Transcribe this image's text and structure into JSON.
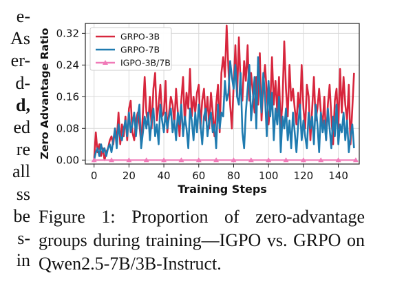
{
  "left_text": [
    {
      "text": "e-",
      "bold": false
    },
    {
      "text": "As",
      "bold": false
    },
    {
      "text": "er-",
      "bold": false
    },
    {
      "text": "d-",
      "bold": false
    },
    {
      "text": "d,",
      "bold": true
    },
    {
      "text": "ed",
      "bold": false
    },
    {
      "text": "re",
      "bold": false
    },
    {
      "text": "all",
      "bold": false
    },
    {
      "text": "ss",
      "bold": false
    },
    {
      "text": "be",
      "bold": false
    },
    {
      "text": "s-",
      "bold": false
    },
    {
      "text": "in",
      "bold": false
    }
  ],
  "caption": "Figure 1: Proportion of zero-advantage groups during training—IGPO vs. GRPO on Qwen2.5-7B/3B-Instruct.",
  "chart_data": {
    "type": "line",
    "title": "",
    "xlabel": "Training Steps",
    "ylabel": "Zero Advantage Ratio",
    "xlim": [
      -5,
      152
    ],
    "ylim": [
      -0.01,
      0.345
    ],
    "xticks": [
      0,
      20,
      40,
      60,
      80,
      100,
      120,
      140
    ],
    "yticks": [
      0.0,
      0.08,
      0.16,
      0.24,
      0.32
    ],
    "ytick_labels": [
      "0.00",
      "0.08",
      "0.16",
      "0.24",
      "0.32"
    ],
    "grid": true,
    "legend_position": "top-left",
    "series": [
      {
        "name": "GRPO-3B",
        "color": "#d7263d",
        "marker": "none",
        "x": [
          0,
          1,
          2,
          3,
          4,
          5,
          6,
          7,
          8,
          9,
          10,
          11,
          12,
          13,
          14,
          15,
          16,
          17,
          18,
          19,
          20,
          21,
          22,
          23,
          24,
          25,
          26,
          27,
          28,
          29,
          30,
          31,
          32,
          33,
          34,
          35,
          36,
          37,
          38,
          39,
          40,
          41,
          42,
          43,
          44,
          45,
          46,
          47,
          48,
          49,
          50,
          51,
          52,
          53,
          54,
          55,
          56,
          57,
          58,
          59,
          60,
          61,
          62,
          63,
          64,
          65,
          66,
          67,
          68,
          69,
          70,
          71,
          72,
          73,
          74,
          75,
          76,
          77,
          78,
          79,
          80,
          81,
          82,
          83,
          84,
          85,
          86,
          87,
          88,
          89,
          90,
          91,
          92,
          93,
          94,
          95,
          96,
          97,
          98,
          99,
          100,
          101,
          102,
          103,
          104,
          105,
          106,
          107,
          108,
          109,
          110,
          111,
          112,
          113,
          114,
          115,
          116,
          117,
          118,
          119,
          120,
          121,
          122,
          123,
          124,
          125,
          126,
          127,
          128,
          129,
          130,
          131,
          132,
          133,
          134,
          135,
          136,
          137,
          138,
          139,
          140,
          141,
          142,
          143,
          144,
          145,
          146,
          147,
          148,
          149
        ],
        "values": [
          0.0,
          0.07,
          0.02,
          0.04,
          0.01,
          0.03,
          0.0,
          0.02,
          0.03,
          0.05,
          0.06,
          0.04,
          0.08,
          0.05,
          0.12,
          0.04,
          0.09,
          0.06,
          0.11,
          0.05,
          0.13,
          0.15,
          0.07,
          0.05,
          0.1,
          0.12,
          0.09,
          0.04,
          0.12,
          0.21,
          0.12,
          0.09,
          0.16,
          0.08,
          0.18,
          0.22,
          0.1,
          0.14,
          0.19,
          0.11,
          0.12,
          0.2,
          0.07,
          0.12,
          0.16,
          0.14,
          0.09,
          0.18,
          0.12,
          0.06,
          0.15,
          0.21,
          0.09,
          0.17,
          0.13,
          0.23,
          0.11,
          0.16,
          0.12,
          0.17,
          0.19,
          0.08,
          0.15,
          0.18,
          0.1,
          0.16,
          0.08,
          0.17,
          0.12,
          0.06,
          0.14,
          0.19,
          0.07,
          0.22,
          0.26,
          0.21,
          0.34,
          0.23,
          0.14,
          0.08,
          0.19,
          0.29,
          0.16,
          0.31,
          0.19,
          0.15,
          0.25,
          0.2,
          0.29,
          0.15,
          0.22,
          0.17,
          0.12,
          0.21,
          0.14,
          0.27,
          0.1,
          0.19,
          0.24,
          0.17,
          0.09,
          0.14,
          0.26,
          0.14,
          0.2,
          0.12,
          0.21,
          0.08,
          0.15,
          0.3,
          0.18,
          0.11,
          0.24,
          0.15,
          0.18,
          0.13,
          0.09,
          0.17,
          0.11,
          0.24,
          0.13,
          0.08,
          0.19,
          0.16,
          0.05,
          0.13,
          0.21,
          0.1,
          0.13,
          0.18,
          0.12,
          0.09,
          0.16,
          0.05,
          0.14,
          0.19,
          0.11,
          0.04,
          0.15,
          0.18,
          0.08,
          0.23,
          0.12,
          0.21,
          0.14,
          0.1,
          0.19,
          0.04,
          0.13,
          0.22
        ]
      },
      {
        "name": "GRPO-7B",
        "color": "#1f7bb0",
        "marker": "none",
        "x": [
          0,
          1,
          2,
          3,
          4,
          5,
          6,
          7,
          8,
          9,
          10,
          11,
          12,
          13,
          14,
          15,
          16,
          17,
          18,
          19,
          20,
          21,
          22,
          23,
          24,
          25,
          26,
          27,
          28,
          29,
          30,
          31,
          32,
          33,
          34,
          35,
          36,
          37,
          38,
          39,
          40,
          41,
          42,
          43,
          44,
          45,
          46,
          47,
          48,
          49,
          50,
          51,
          52,
          53,
          54,
          55,
          56,
          57,
          58,
          59,
          60,
          61,
          62,
          63,
          64,
          65,
          66,
          67,
          68,
          69,
          70,
          71,
          72,
          73,
          74,
          75,
          76,
          77,
          78,
          79,
          80,
          81,
          82,
          83,
          84,
          85,
          86,
          87,
          88,
          89,
          90,
          91,
          92,
          93,
          94,
          95,
          96,
          97,
          98,
          99,
          100,
          101,
          102,
          103,
          104,
          105,
          106,
          107,
          108,
          109,
          110,
          111,
          112,
          113,
          114,
          115,
          116,
          117,
          118,
          119,
          120,
          121,
          122,
          123,
          124,
          125,
          126,
          127,
          128,
          129,
          130,
          131,
          132,
          133,
          134,
          135,
          136,
          137,
          138,
          139,
          140,
          141,
          142,
          143,
          144,
          145,
          146,
          147,
          148,
          149
        ],
        "values": [
          0.0,
          0.02,
          0.03,
          0.01,
          0.04,
          0.02,
          0.03,
          0.01,
          0.03,
          0.04,
          0.02,
          0.05,
          0.08,
          0.03,
          0.09,
          0.06,
          0.05,
          0.08,
          0.1,
          0.06,
          0.12,
          0.07,
          0.09,
          0.12,
          0.06,
          0.11,
          0.14,
          0.03,
          0.07,
          0.11,
          0.08,
          0.12,
          0.05,
          0.1,
          0.13,
          0.06,
          0.09,
          0.04,
          0.14,
          0.1,
          0.07,
          0.12,
          0.08,
          0.11,
          0.13,
          0.07,
          0.1,
          0.05,
          0.12,
          0.09,
          0.14,
          0.06,
          0.11,
          0.08,
          0.03,
          0.13,
          0.1,
          0.05,
          0.12,
          0.07,
          0.14,
          0.09,
          0.04,
          0.11,
          0.13,
          0.06,
          0.1,
          0.12,
          0.07,
          0.09,
          0.03,
          0.14,
          0.08,
          0.12,
          0.11,
          0.2,
          0.15,
          0.17,
          0.25,
          0.21,
          0.18,
          0.24,
          0.16,
          0.14,
          0.22,
          0.07,
          0.03,
          0.12,
          0.18,
          0.24,
          0.1,
          0.15,
          0.21,
          0.08,
          0.26,
          0.18,
          0.12,
          0.22,
          0.16,
          0.06,
          0.2,
          0.11,
          0.17,
          0.05,
          0.13,
          0.09,
          0.16,
          0.02,
          0.11,
          0.08,
          0.13,
          0.05,
          0.1,
          0.03,
          0.12,
          0.07,
          0.02,
          0.09,
          0.14,
          0.05,
          0.1,
          0.06,
          0.03,
          0.12,
          0.08,
          0.11,
          0.04,
          0.14,
          0.09,
          0.02,
          0.12,
          0.07,
          0.1,
          0.05,
          0.13,
          0.08,
          0.03,
          0.11,
          0.06,
          0.14,
          0.04,
          0.09,
          0.07,
          0.12,
          0.05,
          0.1,
          0.02,
          0.06,
          0.09,
          0.03
        ]
      },
      {
        "name": "IGPO-3B/7B",
        "color": "#f07ab8",
        "marker": "triangle",
        "marker_every_x": [
          0,
          10,
          20,
          30,
          40,
          50,
          60,
          70,
          80,
          90,
          100,
          110,
          120,
          130,
          140,
          150
        ],
        "x": [
          0,
          150
        ],
        "values": [
          0.0,
          0.0
        ]
      }
    ]
  }
}
